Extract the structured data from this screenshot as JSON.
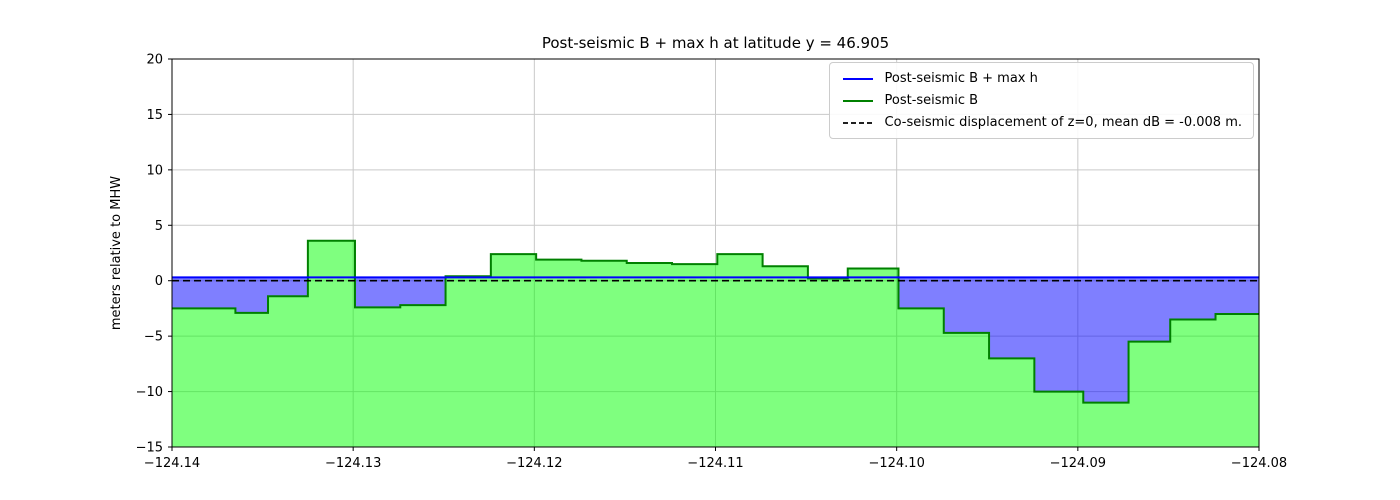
{
  "figure": {
    "background": "#ffffff"
  },
  "chart_data": {
    "type": "area",
    "title": "Post-seismic B + max h at latitude y = 46.905",
    "xlabel": "",
    "ylabel": "meters relative to MHW",
    "xlim": [
      -124.14,
      -124.08
    ],
    "ylim": [
      -15,
      20
    ],
    "grid": true,
    "grid_color": "#c9c9c9",
    "legend_position": "upper right",
    "x_ticks": [
      -124.14,
      -124.13,
      -124.12,
      -124.11,
      -124.1,
      -124.09,
      -124.08
    ],
    "x_tick_labels": [
      "−124.14",
      "−124.13",
      "−124.12",
      "−124.11",
      "−124.10",
      "−124.09",
      "−124.08"
    ],
    "y_ticks": [
      20,
      15,
      10,
      5,
      0,
      -5,
      -10,
      -15
    ],
    "y_tick_labels": [
      "20",
      "15",
      "10",
      "5",
      "0",
      "−5",
      "−10",
      "−15"
    ],
    "series": {
      "b_plus_max_h": {
        "name": "Post-seismic B + max h",
        "type": "hline",
        "value": 0.3,
        "color": "#0000ff",
        "linewidth": 2
      },
      "post_seismic_b": {
        "name": "Post-seismic B",
        "type": "step-area",
        "fill_color": "rgba(0,255,0,0.5)",
        "edge_color": "#008000",
        "baseline": -15,
        "x_end": -124.08,
        "steps": [
          [
            -124.14,
            -2.5
          ],
          [
            -124.1365,
            -2.9
          ],
          [
            -124.1347,
            -1.4
          ],
          [
            -124.1325,
            3.6
          ],
          [
            -124.1299,
            -2.4
          ],
          [
            -124.1274,
            -2.2
          ],
          [
            -124.1249,
            0.4
          ],
          [
            -124.1224,
            2.4
          ],
          [
            -124.1199,
            1.9
          ],
          [
            -124.1174,
            1.8
          ],
          [
            -124.1149,
            1.6
          ],
          [
            -124.1124,
            1.5
          ],
          [
            -124.1099,
            2.4
          ],
          [
            -124.1074,
            1.3
          ],
          [
            -124.1049,
            0.2
          ],
          [
            -124.1027,
            1.1
          ],
          [
            -124.0999,
            -2.5
          ],
          [
            -124.0974,
            -4.7
          ],
          [
            -124.0949,
            -7.0
          ],
          [
            -124.0924,
            -10.0
          ],
          [
            -124.0897,
            -11.0
          ],
          [
            -124.0872,
            -5.5
          ],
          [
            -124.0849,
            -3.5
          ],
          [
            -124.0824,
            -3.0
          ]
        ]
      },
      "fill_between": {
        "name": "fill between Post-seismic B and B + max h",
        "color": "rgba(0,0,255,0.5)",
        "top_value": 0.3
      },
      "co_seismic_zero": {
        "name": "Co-seismic displacement of z=0, mean dB = -0.008 m.",
        "type": "hline-dashed",
        "value": 0.0,
        "color": "#000000",
        "linewidth": 1.6
      }
    }
  },
  "legend": {
    "items": [
      {
        "label": "Post-seismic B + max h",
        "color": "#0000ff",
        "dash": false
      },
      {
        "label": "Post-seismic B",
        "color": "#008000",
        "dash": false
      },
      {
        "label": "Co-seismic displacement of z=0, mean dB = -0.008 m.",
        "color": "#000000",
        "dash": true
      }
    ]
  }
}
